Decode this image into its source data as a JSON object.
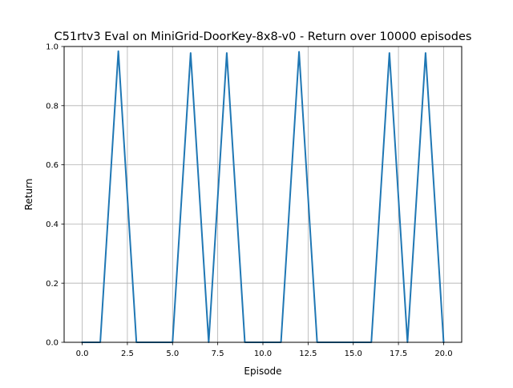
{
  "chart_data": {
    "type": "line",
    "title": "C51rtv3 Eval on MiniGrid-DoorKey-8x8-v0 - Return over 10000 episodes",
    "xlabel": "Episode",
    "ylabel": "Return",
    "xlim": [
      -1,
      21
    ],
    "ylim": [
      0,
      1
    ],
    "grid": true,
    "xticks": [
      0,
      2.5,
      5,
      7.5,
      10,
      12.5,
      15,
      17.5,
      20
    ],
    "xtick_labels": [
      "0.0",
      "2.5",
      "5.0",
      "7.5",
      "10.0",
      "12.5",
      "15.0",
      "17.5",
      "20.0"
    ],
    "yticks": [
      0,
      0.2,
      0.4,
      0.6,
      0.8,
      1.0
    ],
    "ytick_labels": [
      "0.0",
      "0.2",
      "0.4",
      "0.6",
      "0.8",
      "1.0"
    ],
    "series": [
      {
        "color": "#1f77b4",
        "x": [
          0,
          1,
          2,
          3,
          4,
          5,
          6,
          7,
          8,
          9,
          10,
          11,
          12,
          13,
          14,
          15,
          16,
          17,
          18,
          19,
          20
        ],
        "y": [
          0,
          0,
          0.984,
          0,
          0,
          0,
          0.978,
          0,
          0.978,
          0,
          0,
          0,
          0.982,
          0,
          0,
          0,
          0,
          0.978,
          0,
          0.978,
          0
        ]
      }
    ]
  }
}
